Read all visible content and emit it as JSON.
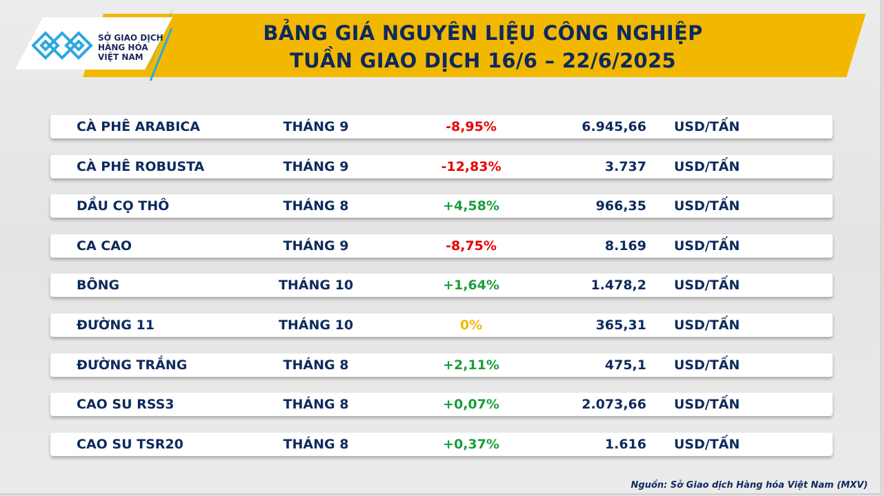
{
  "header": {
    "title_line1": "BẢNG GIÁ NGUYÊN LIỆU CÔNG NGHIỆP",
    "title_line2": "TUẦN GIAO DỊCH 16/6 – 22/6/2025"
  },
  "logo": {
    "line1": "SỞ GIAO DỊCH",
    "line2": "HÀNG HÓA",
    "line3": "VIỆT NAM",
    "icon": "mxv-logo-icon"
  },
  "colors": {
    "navy": "#0d2a5e",
    "banner": "#f2b800",
    "negative": "#e60000",
    "positive": "#1a9e3a",
    "neutral": "#f2b705",
    "logo_blue": "#2aa7e0"
  },
  "rows": [
    {
      "name": "CÀ PHÊ ARABICA",
      "month": "THÁNG 9",
      "change": "-8,95%",
      "trend": "negative",
      "price": "6.945,66",
      "unit": "USD/TẤN"
    },
    {
      "name": "CÀ PHÊ ROBUSTA",
      "month": "THÁNG 9",
      "change": "-12,83%",
      "trend": "negative",
      "price": "3.737",
      "unit": "USD/TẤN"
    },
    {
      "name": "DẦU CỌ THÔ",
      "month": "THÁNG 8",
      "change": "+4,58%",
      "trend": "positive",
      "price": "966,35",
      "unit": "USD/TẤN"
    },
    {
      "name": "CA CAO",
      "month": "THÁNG 9",
      "change": "-8,75%",
      "trend": "negative",
      "price": "8.169",
      "unit": "USD/TẤN"
    },
    {
      "name": "BÔNG",
      "month": "THÁNG 10",
      "change": "+1,64%",
      "trend": "positive",
      "price": "1.478,2",
      "unit": "USD/TẤN"
    },
    {
      "name": "ĐƯỜNG 11",
      "month": "THÁNG 10",
      "change": "0%",
      "trend": "neutral",
      "price": "365,31",
      "unit": "USD/TẤN"
    },
    {
      "name": "ĐƯỜNG TRẮNG",
      "month": "THÁNG 8",
      "change": "+2,11%",
      "trend": "positive",
      "price": "475,1",
      "unit": "USD/TẤN"
    },
    {
      "name": "CAO SU RSS3",
      "month": "THÁNG 8",
      "change": "+0,07%",
      "trend": "positive",
      "price": "2.073,66",
      "unit": "USD/TẤN"
    },
    {
      "name": "CAO SU TSR20",
      "month": "THÁNG 8",
      "change": "+0,37%",
      "trend": "positive",
      "price": "1.616",
      "unit": "USD/TẤN"
    }
  ],
  "footer": {
    "source": "Nguồn: Sở Giao dịch Hàng hóa Việt Nam (MXV)"
  }
}
